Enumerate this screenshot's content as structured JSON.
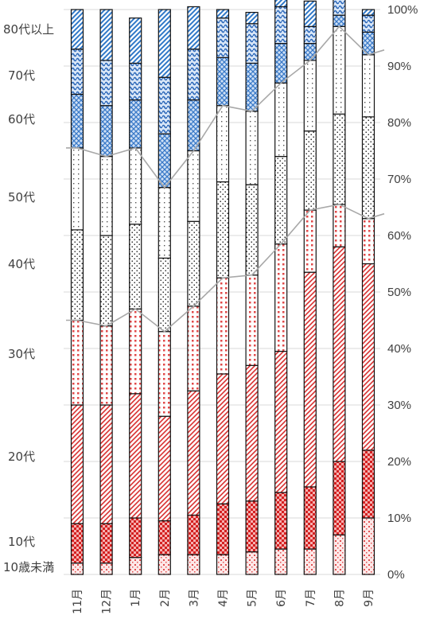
{
  "chart_data": {
    "type": "bar",
    "stacked": true,
    "normalized": true,
    "categories": [
      "11月",
      "12月",
      "1月",
      "2月",
      "3月",
      "4月",
      "5月",
      "6月",
      "7月",
      "8月",
      "9月"
    ],
    "series": [
      {
        "name": "10歳未満",
        "color": "#e05050",
        "values": [
          2,
          2,
          3,
          3.5,
          3.5,
          3.5,
          4,
          4.5,
          4.5,
          7,
          10
        ]
      },
      {
        "name": "10代",
        "color": "#d42020",
        "values": [
          7,
          7,
          7,
          6,
          7,
          9,
          9,
          10,
          11,
          13,
          12
        ]
      },
      {
        "name": "20代",
        "color": "#d83030",
        "values": [
          21,
          21,
          22,
          18.5,
          22,
          23,
          24,
          25,
          38,
          38,
          33
        ]
      },
      {
        "name": "30代",
        "color": "#e04848",
        "values": [
          15,
          14,
          15,
          15,
          15,
          17,
          16,
          19,
          11,
          7.5,
          8
        ]
      },
      {
        "name": "40代",
        "color": "#333333",
        "values": [
          16,
          16,
          15,
          13,
          15,
          17,
          16,
          15.5,
          14,
          16,
          18
        ]
      },
      {
        "name": "50代",
        "color": "#888888",
        "values": [
          14.5,
          14,
          13.5,
          12.5,
          12.5,
          13.5,
          13,
          13,
          12.5,
          15.5,
          11
        ]
      },
      {
        "name": "60代",
        "color": "#3a7ac8",
        "values": [
          9.5,
          9,
          8.5,
          9.5,
          9,
          8.5,
          8.5,
          7,
          3,
          2,
          4
        ]
      },
      {
        "name": "70代",
        "color": "#2a66b8",
        "values": [
          8,
          8,
          6.5,
          10,
          9,
          7,
          7,
          6.5,
          3,
          3,
          3
        ]
      },
      {
        "name": "80代以上",
        "color": "#2f78c8",
        "values": [
          7,
          9,
          8,
          12,
          7.5,
          1.5,
          2,
          3.5,
          4.5,
          2,
          1
        ]
      }
    ],
    "ylim": [
      0,
      100
    ],
    "yticks": [
      "0%",
      "10%",
      "20%",
      "30%",
      "40%",
      "50%",
      "60%",
      "70%",
      "80%",
      "90%",
      "100%"
    ],
    "grid": true,
    "legend": "left"
  },
  "age_labels": [
    "80代以上",
    "70代",
    "60代",
    "50代",
    "40代",
    "30代",
    "20代",
    "10代",
    "10歳未満"
  ]
}
